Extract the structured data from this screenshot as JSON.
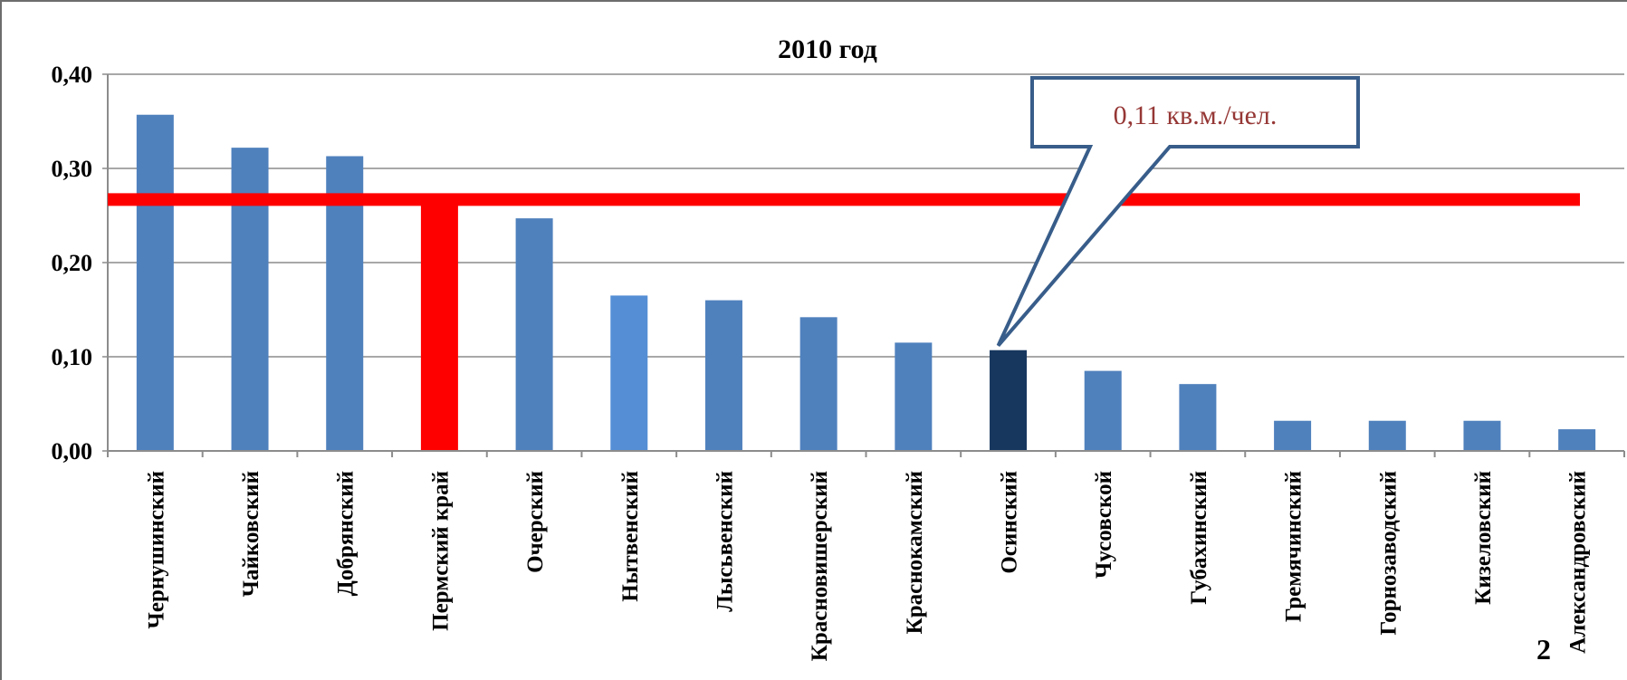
{
  "slide_number": "2",
  "chart_data": {
    "type": "bar",
    "title": "2010 год",
    "xlabel": "",
    "ylabel": "",
    "ylim": [
      0,
      0.4
    ],
    "yticks": [
      0.0,
      0.1,
      0.2,
      0.3,
      0.4
    ],
    "ytick_labels": [
      "0,00",
      "0,10",
      "0,20",
      "0,30",
      "0,40"
    ],
    "grid": true,
    "categories": [
      "Чернушинский",
      "Чайковский",
      "Добрянский",
      "Пермский край",
      "Очерский",
      "Нытвенский",
      "Лысьвенский",
      "Красновишерский",
      "Краснокамский",
      "Осинский",
      "Чусовской",
      "Губахинский",
      "Гремячинский",
      "Горнозаводский",
      "Кизеловский",
      "Александровский"
    ],
    "values": [
      0.357,
      0.322,
      0.313,
      0.265,
      0.247,
      0.165,
      0.16,
      0.142,
      0.115,
      0.107,
      0.085,
      0.071,
      0.032,
      0.032,
      0.032,
      0.023
    ],
    "bar_colors": [
      "#4f81bd",
      "#4f81bd",
      "#4f81bd",
      "#ff0000",
      "#4f81bd",
      "#558ed5",
      "#4f81bd",
      "#4f81bd",
      "#4f81bd",
      "#17375e",
      "#4f81bd",
      "#4f81bd",
      "#4f81bd",
      "#4f81bd",
      "#4f81bd",
      "#4f81bd"
    ],
    "reference_line": {
      "value": 0.265,
      "color": "#ff0000"
    },
    "callout": {
      "text": "0,11 кв.м./чел.",
      "target_category": "Осинский",
      "text_color": "#953735",
      "border_color": "#385d8a"
    }
  }
}
